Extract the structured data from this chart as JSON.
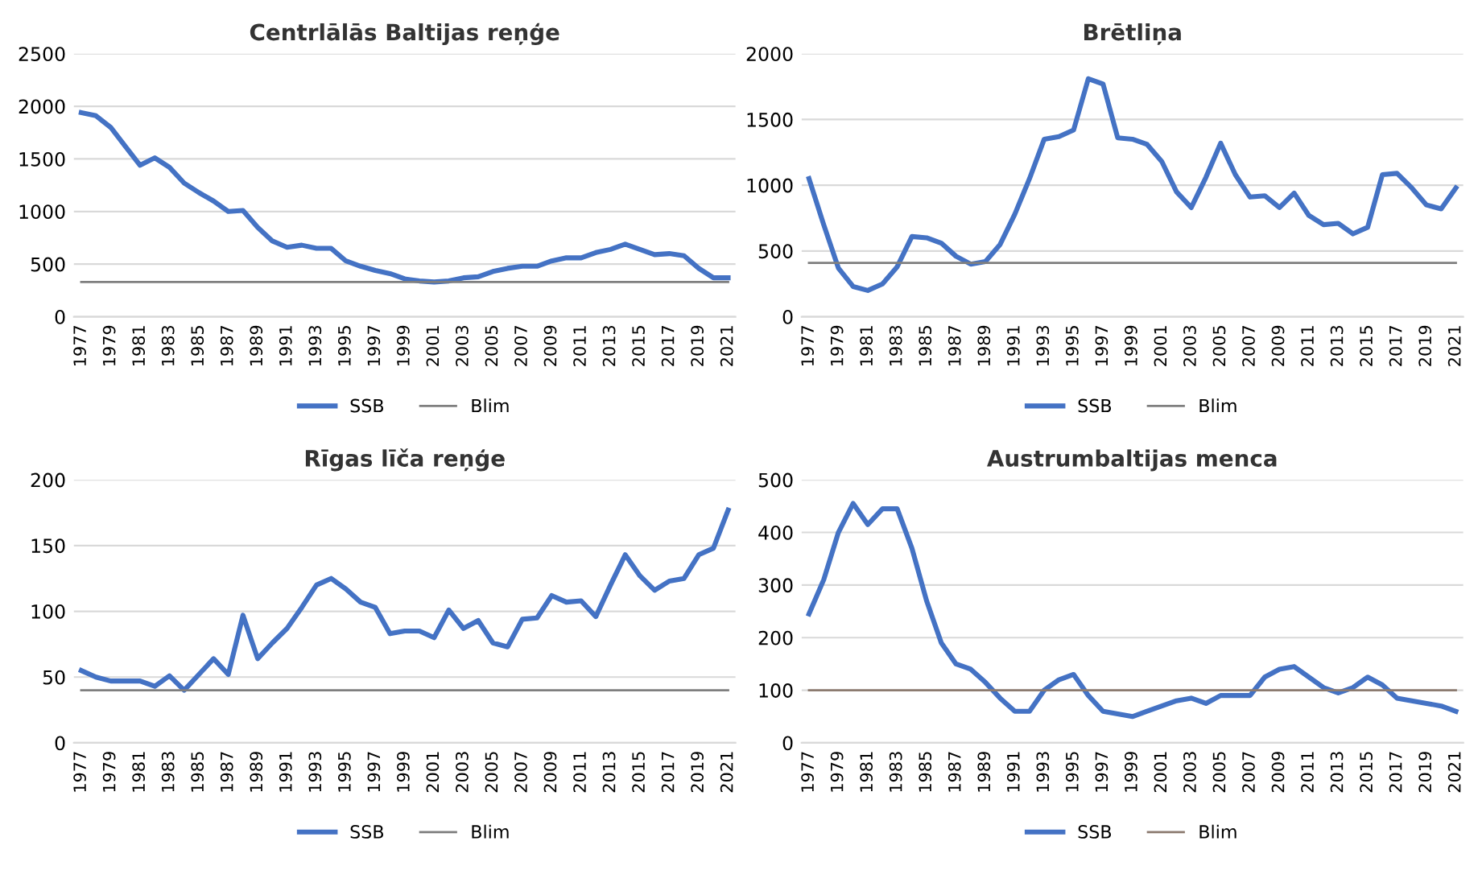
{
  "chart_data": [
    {
      "type": "line",
      "title": "Centrlālās Baltijas reņģe",
      "categories": [
        "1977",
        null,
        "1979",
        null,
        "1981",
        null,
        "1983",
        null,
        "1985",
        null,
        "1987",
        null,
        "1989",
        null,
        "1991",
        null,
        "1993",
        null,
        "1995",
        null,
        "1997",
        null,
        "1999",
        null,
        "2001",
        null,
        "2003",
        null,
        "2005",
        null,
        "2007",
        null,
        "2009",
        null,
        "2011",
        null,
        "2013",
        null,
        "2015",
        null,
        "2017",
        null,
        "2019",
        null,
        "2021"
      ],
      "ylim": [
        0,
        2500
      ],
      "yticks": [
        0,
        500,
        1000,
        1500,
        2000,
        2500
      ],
      "grid": "y",
      "legend": "bottom",
      "series": [
        {
          "name": "SSB",
          "color": "#4472c4",
          "values": [
            1940,
            1910,
            1800,
            1620,
            1440,
            1510,
            1420,
            1270,
            1180,
            1100,
            1000,
            1010,
            850,
            720,
            660,
            680,
            650,
            650,
            530,
            480,
            440,
            410,
            360,
            340,
            330,
            340,
            370,
            380,
            430,
            460,
            480,
            480,
            530,
            560,
            560,
            610,
            640,
            690,
            640,
            590,
            600,
            580,
            460,
            370,
            370
          ]
        },
        {
          "name": "Blim",
          "color": "#7f7f7f",
          "values": [
            330,
            330,
            330,
            330,
            330,
            330,
            330,
            330,
            330,
            330,
            330,
            330,
            330,
            330,
            330,
            330,
            330,
            330,
            330,
            330,
            330,
            330,
            330,
            330,
            330,
            330,
            330,
            330,
            330,
            330,
            330,
            330,
            330,
            330,
            330,
            330,
            330,
            330,
            330,
            330,
            330,
            330,
            330,
            330,
            330
          ]
        }
      ]
    },
    {
      "type": "line",
      "title": "Brētliņa",
      "categories": [
        "1977",
        null,
        "1979",
        null,
        "1981",
        null,
        "1983",
        null,
        "1985",
        null,
        "1987",
        null,
        "1989",
        null,
        "1991",
        null,
        "1993",
        null,
        "1995",
        null,
        "1997",
        null,
        "1999",
        null,
        "2001",
        null,
        "2003",
        null,
        "2005",
        null,
        "2007",
        null,
        "2009",
        null,
        "2011",
        null,
        "2013",
        null,
        "2015",
        null,
        "2017",
        null,
        "2019",
        null,
        "2021"
      ],
      "ylim": [
        0,
        2000
      ],
      "yticks": [
        0,
        500,
        1000,
        1500,
        2000
      ],
      "grid": "y",
      "legend": "bottom",
      "series": [
        {
          "name": "SSB",
          "color": "#4472c4",
          "values": [
            1050,
            700,
            370,
            230,
            200,
            250,
            380,
            610,
            600,
            560,
            460,
            400,
            420,
            550,
            780,
            1050,
            1350,
            1370,
            1420,
            1810,
            1770,
            1360,
            1350,
            1310,
            1180,
            950,
            830,
            1060,
            1320,
            1080,
            910,
            920,
            830,
            940,
            770,
            700,
            710,
            630,
            680,
            1080,
            1090,
            980,
            850,
            820,
            980
          ]
        },
        {
          "name": "Blim",
          "color": "#7f7f7f",
          "values": [
            410,
            410,
            410,
            410,
            410,
            410,
            410,
            410,
            410,
            410,
            410,
            410,
            410,
            410,
            410,
            410,
            410,
            410,
            410,
            410,
            410,
            410,
            410,
            410,
            410,
            410,
            410,
            410,
            410,
            410,
            410,
            410,
            410,
            410,
            410,
            410,
            410,
            410,
            410,
            410,
            410,
            410,
            410,
            410,
            410
          ]
        }
      ]
    },
    {
      "type": "line",
      "title": "Rīgas līča reņģe",
      "categories": [
        "1977",
        null,
        "1979",
        null,
        "1981",
        null,
        "1983",
        null,
        "1985",
        null,
        "1987",
        null,
        "1989",
        null,
        "1991",
        null,
        "1993",
        null,
        "1995",
        null,
        "1997",
        null,
        "1999",
        null,
        "2001",
        null,
        "2003",
        null,
        "2005",
        null,
        "2007",
        null,
        "2009",
        null,
        "2011",
        null,
        "2013",
        null,
        "2015",
        null,
        "2017",
        null,
        "2019",
        null,
        "2021"
      ],
      "ylim": [
        0,
        200
      ],
      "yticks": [
        0,
        50,
        100,
        150,
        200
      ],
      "grid": "y",
      "legend": "bottom",
      "series": [
        {
          "name": "SSB",
          "color": "#4472c4",
          "values": [
            55,
            50,
            47,
            47,
            47,
            43,
            51,
            40,
            52,
            64,
            52,
            97,
            64,
            76,
            87,
            103,
            120,
            125,
            117,
            107,
            103,
            83,
            85,
            85,
            80,
            101,
            87,
            93,
            76,
            73,
            94,
            95,
            112,
            107,
            108,
            96,
            120,
            143,
            127,
            116,
            123,
            125,
            143,
            148,
            177
          ]
        },
        {
          "name": "Blim",
          "color": "#7f7f7f",
          "values": [
            40,
            40,
            40,
            40,
            40,
            40,
            40,
            40,
            40,
            40,
            40,
            40,
            40,
            40,
            40,
            40,
            40,
            40,
            40,
            40,
            40,
            40,
            40,
            40,
            40,
            40,
            40,
            40,
            40,
            40,
            40,
            40,
            40,
            40,
            40,
            40,
            40,
            40,
            40,
            40,
            40,
            40,
            40,
            40,
            40
          ]
        }
      ]
    },
    {
      "type": "line",
      "title": "Austrumbaltijas menca",
      "categories": [
        "1977",
        null,
        "1979",
        null,
        "1981",
        null,
        "1983",
        null,
        "1985",
        null,
        "1987",
        null,
        "1989",
        null,
        "1991",
        null,
        "1993",
        null,
        "1995",
        null,
        "1997",
        null,
        "1999",
        null,
        "2001",
        null,
        "2003",
        null,
        "2005",
        null,
        "2007",
        null,
        "2009",
        null,
        "2011",
        null,
        "2013",
        null,
        "2015",
        null,
        "2017",
        null,
        "2019",
        null,
        "2021"
      ],
      "ylim": [
        0,
        500
      ],
      "yticks": [
        0,
        100,
        200,
        300,
        400,
        500
      ],
      "grid": "y",
      "legend": "bottom",
      "series": [
        {
          "name": "SSB",
          "color": "#4472c4",
          "values": [
            245,
            310,
            400,
            455,
            415,
            445,
            445,
            370,
            270,
            190,
            150,
            140,
            115,
            85,
            60,
            60,
            100,
            120,
            130,
            90,
            60,
            55,
            50,
            60,
            70,
            80,
            85,
            75,
            90,
            90,
            90,
            125,
            140,
            145,
            125,
            105,
            95,
            105,
            125,
            110,
            85,
            80,
            75,
            70,
            60
          ]
        },
        {
          "name": "Blim",
          "color": "#8c7b70",
          "values": [
            100,
            100,
            100,
            100,
            100,
            100,
            100,
            100,
            100,
            100,
            100,
            100,
            100,
            100,
            100,
            100,
            100,
            100,
            100,
            100,
            100,
            100,
            100,
            100,
            100,
            100,
            100,
            100,
            100,
            100,
            100,
            100,
            100,
            100,
            100,
            100,
            100,
            100,
            100,
            100,
            100,
            100,
            100,
            100,
            100
          ]
        }
      ]
    }
  ]
}
